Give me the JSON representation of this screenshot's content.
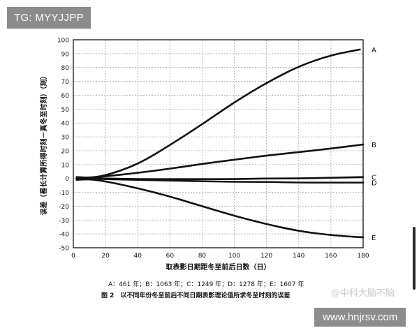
{
  "watermarks": {
    "top": "TG: MYYJJPP",
    "bottom": "www.hnjrsv.com",
    "weibo": "@中科大脑不脑"
  },
  "chart_data": {
    "type": "line",
    "xlabel": "取表影日期距冬至前后日数（日）",
    "ylabel": "误差（晷长计算所得时刻－真冬至时刻）（刻）",
    "xlim": [
      0,
      180
    ],
    "ylim": [
      -50,
      100
    ],
    "xticks": [
      0,
      20,
      40,
      60,
      80,
      100,
      120,
      140,
      160,
      180
    ],
    "yticks": [
      100,
      90,
      80,
      70,
      60,
      50,
      40,
      30,
      20,
      10,
      0,
      -10,
      -20,
      -30,
      -40,
      -50
    ],
    "grid": true,
    "legend_note": "A：461 年；B：1063 年；C：1249 年；D：1278 年；E：1607 年",
    "caption": "图 2　以不同年份冬至前后不同日期表影理论值所求冬至时刻的误差",
    "series": [
      {
        "name": "A",
        "x": [
          2,
          10,
          20,
          40,
          60,
          80,
          100,
          120,
          140,
          160,
          178
        ],
        "y": [
          1,
          0.5,
          2,
          10,
          24,
          39,
          55,
          69,
          81,
          89,
          93
        ]
      },
      {
        "name": "B",
        "x": [
          2,
          10,
          20,
          40,
          60,
          80,
          100,
          120,
          140,
          160,
          180
        ],
        "y": [
          0,
          0.5,
          1.5,
          4,
          7,
          10.5,
          13.5,
          16.5,
          19,
          21.5,
          24.5
        ]
      },
      {
        "name": "C",
        "x": [
          2,
          10,
          20,
          40,
          60,
          80,
          100,
          120,
          140,
          160,
          180
        ],
        "y": [
          0,
          0,
          0,
          -0.5,
          -0.5,
          -0.5,
          -0.5,
          0,
          0,
          0.5,
          1
        ]
      },
      {
        "name": "D",
        "x": [
          2,
          10,
          20,
          40,
          60,
          80,
          100,
          120,
          140,
          160,
          180
        ],
        "y": [
          0,
          0,
          -0.5,
          -1,
          -1.5,
          -2,
          -2.5,
          -2.5,
          -3,
          -3,
          -3
        ]
      },
      {
        "name": "E",
        "x": [
          2,
          10,
          20,
          40,
          60,
          80,
          100,
          120,
          140,
          160,
          180
        ],
        "y": [
          -1,
          -0.5,
          -2,
          -7,
          -13,
          -20,
          -27,
          -33,
          -38,
          -41,
          -42.5
        ]
      }
    ]
  }
}
